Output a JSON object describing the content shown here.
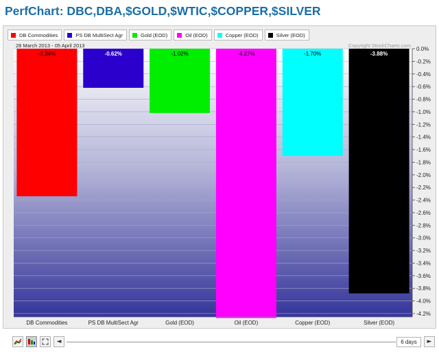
{
  "page": {
    "title": "PerfChart: DBC,DBA,$GOLD,$WTIC,$COPPER,$SILVER"
  },
  "header": {
    "date_range": "28 March 2013 - 05 April 2013",
    "copyright": "Copyright StockCharts.com"
  },
  "legend": [
    {
      "label": "DB Commodities",
      "color": "#ff0000"
    },
    {
      "label": "PS DB MultiSect  Agr",
      "color": "#2b00cc"
    },
    {
      "label": "Gold (EOD)",
      "color": "#00ee00"
    },
    {
      "label": "Oil (EOD)",
      "color": "#ff00ff"
    },
    {
      "label": "Copper (EOD)",
      "color": "#00ffff"
    },
    {
      "label": "Silver (EOD)",
      "color": "#000000"
    }
  ],
  "controls": {
    "period_label": "6 days",
    "scroll_left": "◄",
    "scroll_right": "►"
  },
  "chart_data": {
    "type": "bar",
    "categories": [
      "DB Commodities",
      "PS DB MultiSect  Agr",
      "Gold (EOD)",
      "Oil (EOD)",
      "Copper (EOD)",
      "Silver (EOD)"
    ],
    "values": [
      -2.34,
      -0.62,
      -1.02,
      -4.27,
      -1.7,
      -3.88
    ],
    "value_labels": [
      "-2.34%",
      "-0.62%",
      "-1.02%",
      "-4.27%",
      "-1.70%",
      "-3.88%"
    ],
    "colors": [
      "#ff0000",
      "#2b00cc",
      "#00ee00",
      "#ff00ff",
      "#00ffff",
      "#000000"
    ],
    "label_colors": [
      "#000000",
      "#ffffff",
      "#000000",
      "#000000",
      "#000000",
      "#ffffff"
    ],
    "ylim": [
      -4.3,
      0
    ],
    "y_ticks": [
      0,
      -0.2,
      -0.4,
      -0.6,
      -0.8,
      -1.0,
      -1.2,
      -1.4,
      -1.6,
      -1.8,
      -2.0,
      -2.2,
      -2.4,
      -2.6,
      -2.8,
      -3.0,
      -3.2,
      -3.4,
      -3.6,
      -3.8,
      -4.0,
      -4.2
    ],
    "y_tick_labels": [
      "0.0%",
      "-0.2%",
      "-0.4%",
      "-0.6%",
      "-0.8%",
      "-1.0%",
      "-1.2%",
      "-1.4%",
      "-1.6%",
      "-1.8%",
      "-2.0%",
      "-2.2%",
      "-2.4%",
      "-2.6%",
      "-2.8%",
      "-3.0%",
      "-3.2%",
      "-3.4%",
      "-3.6%",
      "-3.8%",
      "-4.0%",
      "-4.2%"
    ],
    "grid": true,
    "background_gradient": [
      "#ffffff",
      "#3a3a9a"
    ]
  }
}
